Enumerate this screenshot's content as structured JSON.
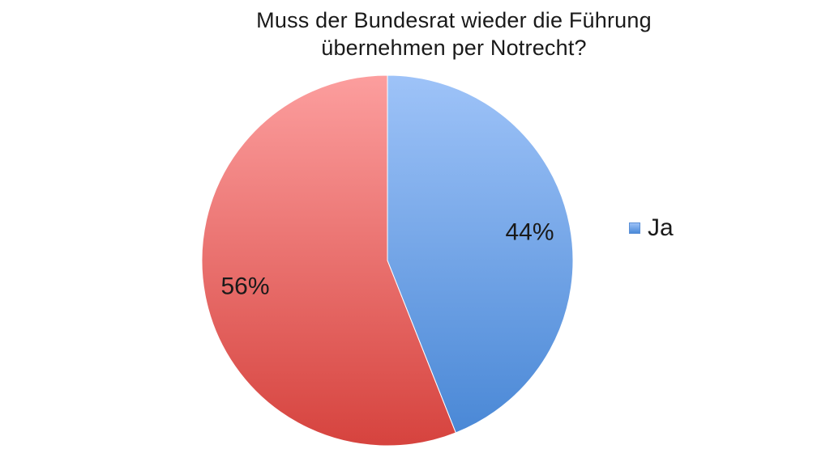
{
  "chart_data": {
    "type": "pie",
    "title_lines": [
      "Muss der Bundesrat wieder die Führung",
      "übernehmen per Notrecht?"
    ],
    "slices": [
      {
        "name": "Ja",
        "value": 44,
        "label": "44%",
        "color_top": "#9ec3f8",
        "color_bottom": "#4a88d6"
      },
      {
        "name": "",
        "value": 56,
        "label": "56%",
        "color_top": "#fc9e9e",
        "color_bottom": "#d6433e"
      }
    ],
    "legend": {
      "placement": "right",
      "entries": [
        "Ja"
      ]
    }
  }
}
